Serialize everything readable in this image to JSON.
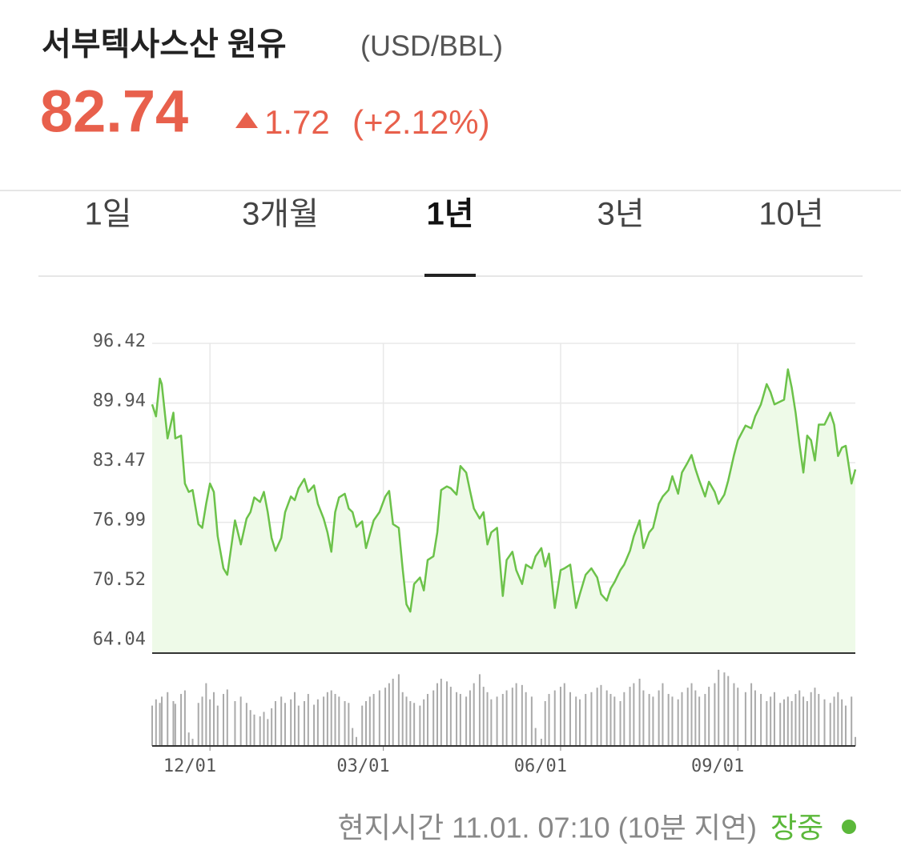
{
  "header": {
    "title": "서부텍사스산 원유",
    "unit": "(USD/BBL)",
    "price": "82.74",
    "change": "1.72",
    "change_pct": "(+2.12%)"
  },
  "tabs": {
    "items": [
      "1일",
      "3개월",
      "1년",
      "3년",
      "10년"
    ],
    "active": 2
  },
  "chart_data": {
    "type": "line",
    "x": [
      0,
      2,
      4,
      5,
      8,
      11,
      12,
      15,
      17,
      19,
      21,
      24,
      26,
      28,
      30,
      32,
      34,
      37,
      39,
      43,
      46,
      49,
      51,
      53,
      56,
      58,
      60,
      62,
      64,
      67,
      69,
      72,
      74,
      76,
      79,
      81,
      84,
      86,
      89,
      91,
      93,
      95,
      97,
      100,
      102,
      104,
      106,
      109,
      111,
      113,
      115,
      118,
      121,
      123,
      125,
      128,
      130,
      132,
      134,
      136,
      139,
      141,
      143,
      146,
      148,
      150,
      153,
      155,
      158,
      160,
      163,
      165,
      167,
      170,
      172,
      174,
      176,
      179,
      182,
      184,
      187,
      189,
      192,
      194,
      197,
      199,
      202,
      204,
      206,
      209,
      212,
      214,
      217,
      220,
      222,
      225,
      228,
      231,
      233,
      236,
      238,
      240,
      243,
      245,
      248,
      250,
      253,
      255,
      258,
      260,
      263,
      265,
      268,
      270,
      273,
      275,
      278,
      280,
      282,
      284,
      287,
      289,
      292,
      294,
      297,
      299,
      302,
      304,
      308,
      311,
      313,
      316,
      319,
      321,
      323,
      326,
      328,
      330,
      332,
      334,
      336,
      338,
      340,
      342,
      344,
      346,
      349,
      352,
      354,
      356,
      358,
      360,
      363,
      365
    ],
    "series": [
      {
        "color": "#6cc24a",
        "fill": "#eefae8",
        "values": [
          89.8,
          88.5,
          92.6,
          92.0,
          86.1,
          88.9,
          86.1,
          86.4,
          81.2,
          80.3,
          80.5,
          76.8,
          76.4,
          79.0,
          81.2,
          80.3,
          75.5,
          72.0,
          71.3,
          77.2,
          74.6,
          77.4,
          78.1,
          79.7,
          79.2,
          80.3,
          78.1,
          75.3,
          73.9,
          75.3,
          78.1,
          79.8,
          79.4,
          80.7,
          81.7,
          80.3,
          81.0,
          79.0,
          77.4,
          75.9,
          73.8,
          78.1,
          79.7,
          80.1,
          78.5,
          78.1,
          76.5,
          77.1,
          74.2,
          75.7,
          77.2,
          78.1,
          79.8,
          80.4,
          76.8,
          76.4,
          72.0,
          68.1,
          67.3,
          70.3,
          71.0,
          69.6,
          72.9,
          73.3,
          75.9,
          80.5,
          80.9,
          80.7,
          80.0,
          83.1,
          82.4,
          80.4,
          78.5,
          77.4,
          78.1,
          74.6,
          75.9,
          76.4,
          69.0,
          72.9,
          73.8,
          71.8,
          70.3,
          72.4,
          72.0,
          73.3,
          74.2,
          72.2,
          73.6,
          67.7,
          71.8,
          72.0,
          72.4,
          67.7,
          69.2,
          71.3,
          72.0,
          71.0,
          69.2,
          68.5,
          69.8,
          70.5,
          71.8,
          72.4,
          73.9,
          75.5,
          77.2,
          74.2,
          75.9,
          76.4,
          79.0,
          79.8,
          80.5,
          82.0,
          80.1,
          82.4,
          83.5,
          84.3,
          82.8,
          81.5,
          79.8,
          81.4,
          80.3,
          79.0,
          80.0,
          81.5,
          84.3,
          85.9,
          87.5,
          87.2,
          88.5,
          89.8,
          92.0,
          91.1,
          89.8,
          90.1,
          90.3,
          93.6,
          91.6,
          88.9,
          85.5,
          82.4,
          86.4,
          85.9,
          83.7,
          87.6,
          87.6,
          88.9,
          87.6,
          84.2,
          85.1,
          85.3,
          81.2,
          82.74
        ]
      }
    ],
    "volume": {
      "color": "#aaaaaa",
      "ylim": [
        0,
        100
      ],
      "values": [
        45,
        52,
        48,
        55,
        60,
        50,
        47,
        58,
        62,
        15,
        8,
        48,
        55,
        70,
        52,
        60,
        45,
        58,
        63,
        50,
        55,
        48,
        40,
        35,
        33,
        38,
        30,
        42,
        50,
        55,
        48,
        52,
        60,
        45,
        50,
        58,
        46,
        52,
        55,
        60,
        62,
        58,
        55,
        50,
        48,
        20,
        10,
        45,
        50,
        55,
        58,
        62,
        65,
        70,
        75,
        80,
        60,
        55,
        50,
        48,
        45,
        52,
        58,
        62,
        70,
        75,
        72,
        66,
        60,
        58,
        55,
        62,
        70,
        80,
        66,
        60,
        52,
        55,
        58,
        62,
        65,
        70,
        68,
        60,
        55,
        20,
        8,
        50,
        58,
        62,
        66,
        70,
        60,
        55,
        52,
        58,
        60,
        65,
        68,
        62,
        58,
        55,
        50,
        60,
        66,
        70,
        75,
        62,
        58,
        55,
        62,
        70,
        58,
        55,
        52,
        60,
        65,
        70,
        62,
        55,
        58,
        66,
        70,
        85,
        82,
        78,
        70,
        65,
        60,
        70,
        62,
        58,
        50,
        55,
        60,
        48,
        52,
        55,
        50,
        58,
        62,
        55,
        50,
        60,
        65,
        58,
        52,
        48,
        55,
        60,
        52,
        45,
        55,
        10
      ]
    },
    "xlim": [
      0,
      365
    ],
    "xticks": [
      {
        "value": 30,
        "label": "12/01"
      },
      {
        "value": 120,
        "label": "03/01"
      },
      {
        "value": 212,
        "label": "06/01"
      },
      {
        "value": 304,
        "label": "09/01"
      }
    ],
    "ylim": [
      62.8,
      96.42
    ],
    "yticks": [
      96.42,
      89.94,
      83.47,
      76.99,
      70.52,
      64.04
    ],
    "grid": true
  },
  "footer": {
    "time": "현지시간 11.01. 07:10 (10분 지연)",
    "status": "장중"
  }
}
